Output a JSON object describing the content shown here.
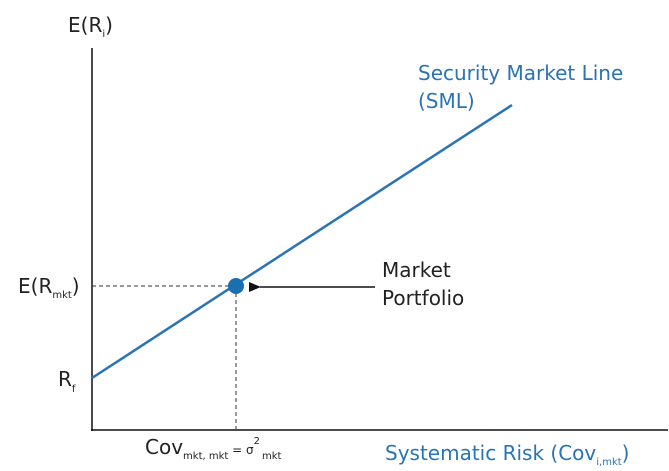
{
  "y_axis": {
    "base": "E(R",
    "sub": "i",
    "close": ")"
  },
  "sml": {
    "line1": "Security Market Line",
    "line2": "(SML)"
  },
  "market_return": {
    "base": "E(R",
    "sub": "mkt",
    "close": ")"
  },
  "risk_free": {
    "base": "R",
    "sub": "f"
  },
  "market_portfolio": {
    "line1": "Market",
    "line2": "Portfolio"
  },
  "market_cov": {
    "base": "Cov",
    "sub1": "mkt, mkt",
    "eq": " = σ",
    "sup": "2",
    "sub2": "mkt"
  },
  "x_axis": {
    "base": "Systematic Risk (Cov",
    "sub": "i,mkt",
    "close": ")"
  }
}
